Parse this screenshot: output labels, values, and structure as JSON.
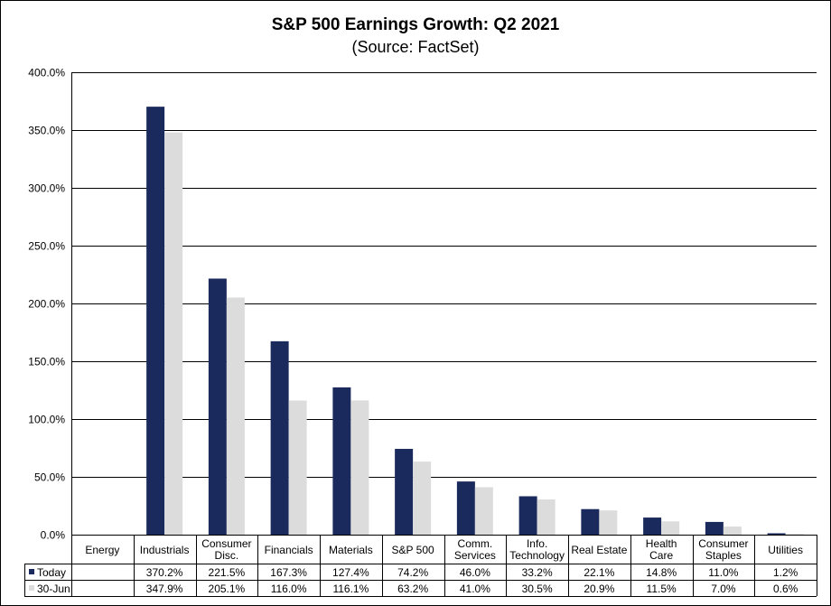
{
  "chart_data": {
    "type": "bar",
    "title": "S&P 500 Earnings Growth:  Q2 2021",
    "subtitle": "(Source: FactSet)",
    "categories": [
      "Energy",
      "Industrials",
      "Consumer Disc.",
      "Financials",
      "Materials",
      "S&P 500",
      "Comm. Services",
      "Info. Technology",
      "Real Estate",
      "Health Care",
      "Consumer Staples",
      "Utilities"
    ],
    "category_lines": [
      [
        "Energy"
      ],
      [
        "Industrials"
      ],
      [
        "Consumer",
        "Disc."
      ],
      [
        "Financials"
      ],
      [
        "Materials"
      ],
      [
        "S&P 500"
      ],
      [
        "Comm.",
        "Services"
      ],
      [
        "Info.",
        "Technology"
      ],
      [
        "Real Estate"
      ],
      [
        "Health",
        "Care"
      ],
      [
        "Consumer",
        "Staples"
      ],
      [
        "Utilities"
      ]
    ],
    "series": [
      {
        "name": "Today",
        "color": "#1b2a5c",
        "values": [
          null,
          370.2,
          221.5,
          167.3,
          127.4,
          74.2,
          46.0,
          33.2,
          22.1,
          14.8,
          11.0,
          1.2
        ],
        "labels": [
          "",
          "370.2%",
          "221.5%",
          "167.3%",
          "127.4%",
          "74.2%",
          "46.0%",
          "33.2%",
          "22.1%",
          "14.8%",
          "11.0%",
          "1.2%"
        ]
      },
      {
        "name": "30-Jun",
        "color": "#dcdcdc",
        "values": [
          null,
          347.9,
          205.1,
          116.0,
          116.1,
          63.2,
          41.0,
          30.5,
          20.9,
          11.5,
          7.0,
          0.6
        ],
        "labels": [
          "",
          "347.9%",
          "205.1%",
          "116.0%",
          "116.1%",
          "63.2%",
          "41.0%",
          "30.5%",
          "20.9%",
          "11.5%",
          "7.0%",
          "0.6%"
        ]
      }
    ],
    "ylim": [
      0,
      400
    ],
    "yticks": [
      0,
      50,
      100,
      150,
      200,
      250,
      300,
      350,
      400
    ],
    "ytick_labels": [
      "0.0%",
      "50.0%",
      "100.0%",
      "150.0%",
      "200.0%",
      "250.0%",
      "300.0%",
      "350.0%",
      "400.0%"
    ],
    "grid": true,
    "legend": "data-table"
  }
}
